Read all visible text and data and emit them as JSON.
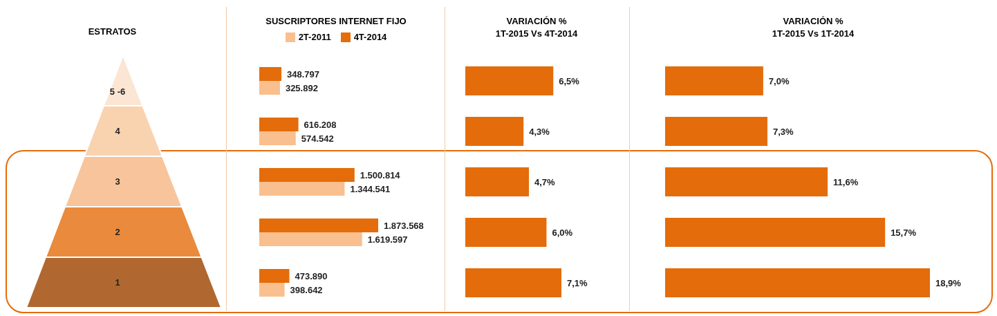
{
  "chart_data": [
    {
      "type": "bar",
      "orientation": "horizontal",
      "title": "SUSCRIPTORES INTERNET FIJO",
      "ylabel": "ESTRATOS",
      "legend": "top",
      "categories": [
        "5 -6",
        "4",
        "3",
        "2",
        "1"
      ],
      "series": [
        {
          "name": "4T-2014",
          "color": "#e46c0a",
          "values": [
            348797,
            616208,
            1500814,
            1873568,
            473890
          ],
          "value_labels": [
            "348.797",
            "616.208",
            "1.500.814",
            "1.873.568",
            "473.890"
          ]
        },
        {
          "name": "2T-2011",
          "color": "#f9bf8f",
          "values": [
            325892,
            574542,
            1344541,
            1619597,
            398642
          ],
          "value_labels": [
            "325.892",
            "574.542",
            "1.344.541",
            "1.619.597",
            "398.642"
          ]
        }
      ]
    },
    {
      "type": "bar",
      "orientation": "horizontal",
      "title": "VARIACIÓN %\n1T-2015 Vs 4T-2014",
      "categories": [
        null,
        null,
        null,
        null,
        null
      ],
      "color": "#e46c0a",
      "values": [
        6.5,
        4.3,
        4.7,
        6.0,
        7.1
      ],
      "value_labels": [
        "6,5%",
        "4,3%",
        "4,7%",
        "6,0%",
        "7,1%"
      ]
    },
    {
      "type": "bar",
      "orientation": "horizontal",
      "title": "VARIACIÓN %\n1T-2015 Vs 1T-2014",
      "categories": [
        null,
        null,
        null,
        null,
        null
      ],
      "color": "#e46c0a",
      "values": [
        7.0,
        7.3,
        11.6,
        15.7,
        18.9
      ],
      "value_labels": [
        "7,0%",
        "7,3%",
        "11,6%",
        "15,7%",
        "18,9%"
      ]
    }
  ]
}
